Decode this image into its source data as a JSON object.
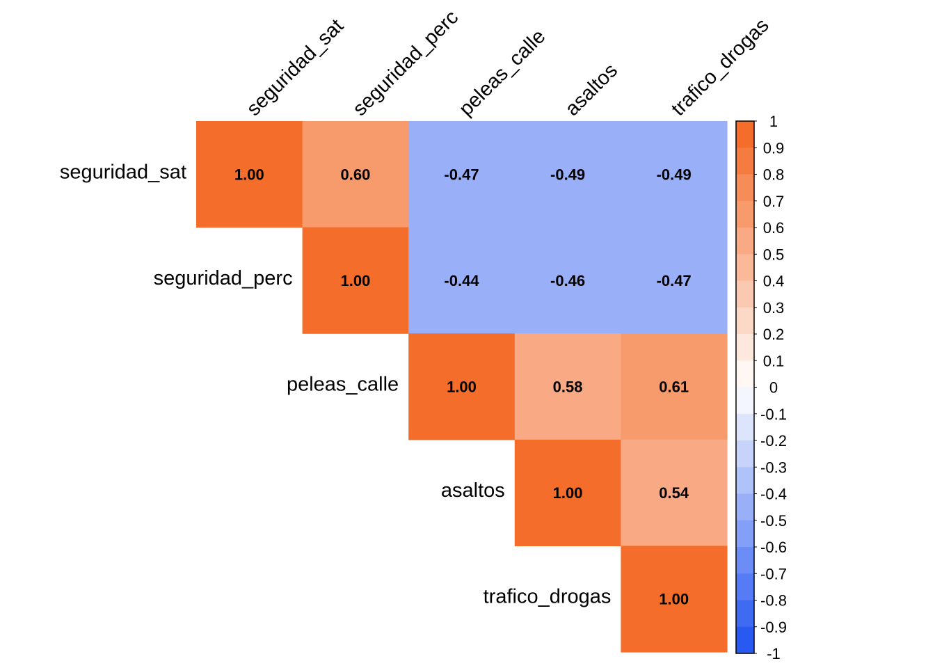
{
  "chart_data": {
    "type": "heatmap",
    "variables": [
      "seguridad_sat",
      "seguridad_perc",
      "peleas_calle",
      "asaltos",
      "trafico_drogas"
    ],
    "matrix_display": "upper",
    "values": [
      [
        1.0,
        0.6,
        -0.47,
        -0.49,
        -0.49
      ],
      [
        null,
        1.0,
        -0.44,
        -0.46,
        -0.47
      ],
      [
        null,
        null,
        1.0,
        0.58,
        0.61
      ],
      [
        null,
        null,
        null,
        1.0,
        0.54
      ],
      [
        null,
        null,
        null,
        null,
        1.0
      ]
    ],
    "value_labels": [
      [
        "1.00",
        "0.60",
        "-0.47",
        "-0.49",
        "-0.49"
      ],
      [
        "",
        "1.00",
        "-0.44",
        "-0.46",
        "-0.47"
      ],
      [
        "",
        "",
        "1.00",
        "0.58",
        "0.61"
      ],
      [
        "",
        "",
        "",
        "1.00",
        "0.54"
      ],
      [
        "",
        "",
        "",
        "",
        "1.00"
      ]
    ],
    "colorbar": {
      "range": [
        -1,
        1
      ],
      "ticks": [
        "1",
        "0.9",
        "0.8",
        "0.7",
        "0.6",
        "0.5",
        "0.4",
        "0.3",
        "0.2",
        "0.1",
        "0",
        "-0.1",
        "-0.2",
        "-0.3",
        "-0.4",
        "-0.5",
        "-0.6",
        "-0.7",
        "-0.8",
        "-0.9",
        "-1"
      ],
      "negative_color": "#2859F1",
      "neutral_color": "#FFFFFF",
      "positive_color": "#F46D2A",
      "position": "right"
    },
    "title": "",
    "xlabel": "",
    "ylabel": ""
  }
}
